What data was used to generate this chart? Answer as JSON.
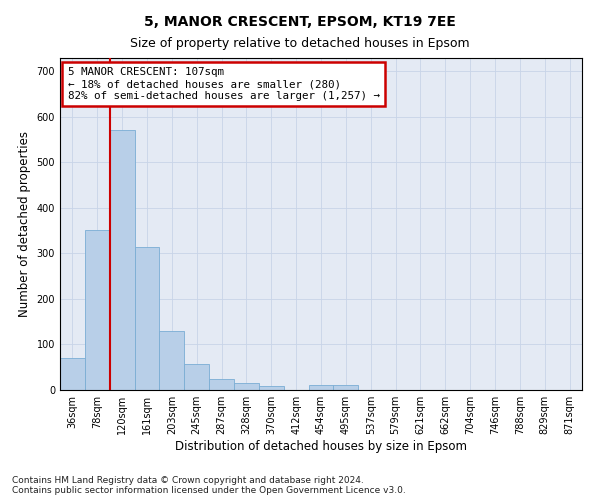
{
  "title1": "5, MANOR CRESCENT, EPSOM, KT19 7EE",
  "title2": "Size of property relative to detached houses in Epsom",
  "xlabel": "Distribution of detached houses by size in Epsom",
  "ylabel": "Number of detached properties",
  "bar_labels": [
    "36sqm",
    "78sqm",
    "120sqm",
    "161sqm",
    "203sqm",
    "245sqm",
    "287sqm",
    "328sqm",
    "370sqm",
    "412sqm",
    "454sqm",
    "495sqm",
    "537sqm",
    "579sqm",
    "621sqm",
    "662sqm",
    "704sqm",
    "746sqm",
    "788sqm",
    "829sqm",
    "871sqm"
  ],
  "bar_values": [
    70,
    352,
    571,
    313,
    130,
    57,
    25,
    15,
    8,
    0,
    10,
    10,
    0,
    0,
    0,
    0,
    0,
    0,
    0,
    0,
    0
  ],
  "bar_color": "#b8cfe8",
  "bar_edge_color": "#7aadd4",
  "vline_index": 1.5,
  "annotation_text": "5 MANOR CRESCENT: 107sqm\n← 18% of detached houses are smaller (280)\n82% of semi-detached houses are larger (1,257) →",
  "annotation_box_color": "#ffffff",
  "annotation_box_edge_color": "#cc0000",
  "ylim": [
    0,
    730
  ],
  "yticks": [
    0,
    100,
    200,
    300,
    400,
    500,
    600,
    700
  ],
  "grid_color": "#c8d4e8",
  "bg_color": "#e4eaf4",
  "footnote": "Contains HM Land Registry data © Crown copyright and database right 2024.\nContains public sector information licensed under the Open Government Licence v3.0.",
  "title1_fontsize": 10,
  "title2_fontsize": 9,
  "xlabel_fontsize": 8.5,
  "ylabel_fontsize": 8.5,
  "tick_fontsize": 7,
  "annotation_fontsize": 7.8,
  "footnote_fontsize": 6.5
}
